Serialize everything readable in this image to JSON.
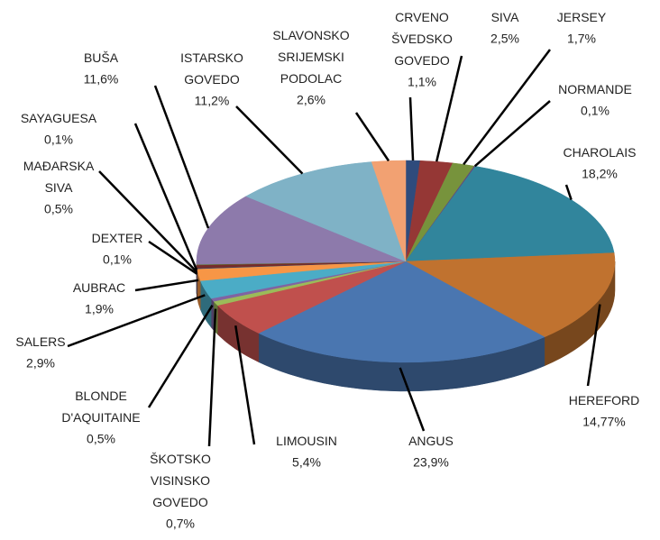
{
  "chart_data": {
    "type": "pie",
    "categories": [
      "CRVENO ŠVEDSKO GOVEDO",
      "SIVA",
      "JERSEY",
      "NORMANDE",
      "CHAROLAIS",
      "HEREFORD",
      "ANGUS",
      "LIMOUSIN",
      "ŠKOTSKO VISINSKO GOVEDO",
      "BLONDE D'AQUITAINE",
      "SALERS",
      "AUBRAC",
      "DEXTER",
      "MAĐARSKA SIVA",
      "SAYAGUESA",
      "BUŠA",
      "ISTARSKO GOVEDO",
      "SLAVONSKO SRIJEMSKI PODOLAC"
    ],
    "values": [
      1.1,
      2.5,
      1.7,
      0.1,
      18.2,
      14.77,
      23.9,
      5.4,
      0.7,
      0.5,
      2.9,
      1.9,
      0.1,
      0.5,
      0.1,
      11.6,
      11.2,
      2.6
    ],
    "value_labels": [
      "1,1%",
      "2,5%",
      "1,7%",
      "0,1%",
      "18,2%",
      "14,77%",
      "23,9%",
      "5,4%",
      "0,7%",
      "0,5%",
      "2,9%",
      "1,9%",
      "0,1%",
      "0,5%",
      "0,1%",
      "11,6%",
      "11,2%",
      "2,6%"
    ],
    "colors": [
      "#2f4b7c",
      "#953735",
      "#77933c",
      "#604a7b",
      "#31859c",
      "#c0722f",
      "#4a76b0",
      "#c0504d",
      "#9bbb59",
      "#8064a2",
      "#4bacc6",
      "#f79646",
      "#2c4d75",
      "#772c2a",
      "#5f7530",
      "#8d7aab",
      "#7fb2c6",
      "#f2a172"
    ]
  }
}
